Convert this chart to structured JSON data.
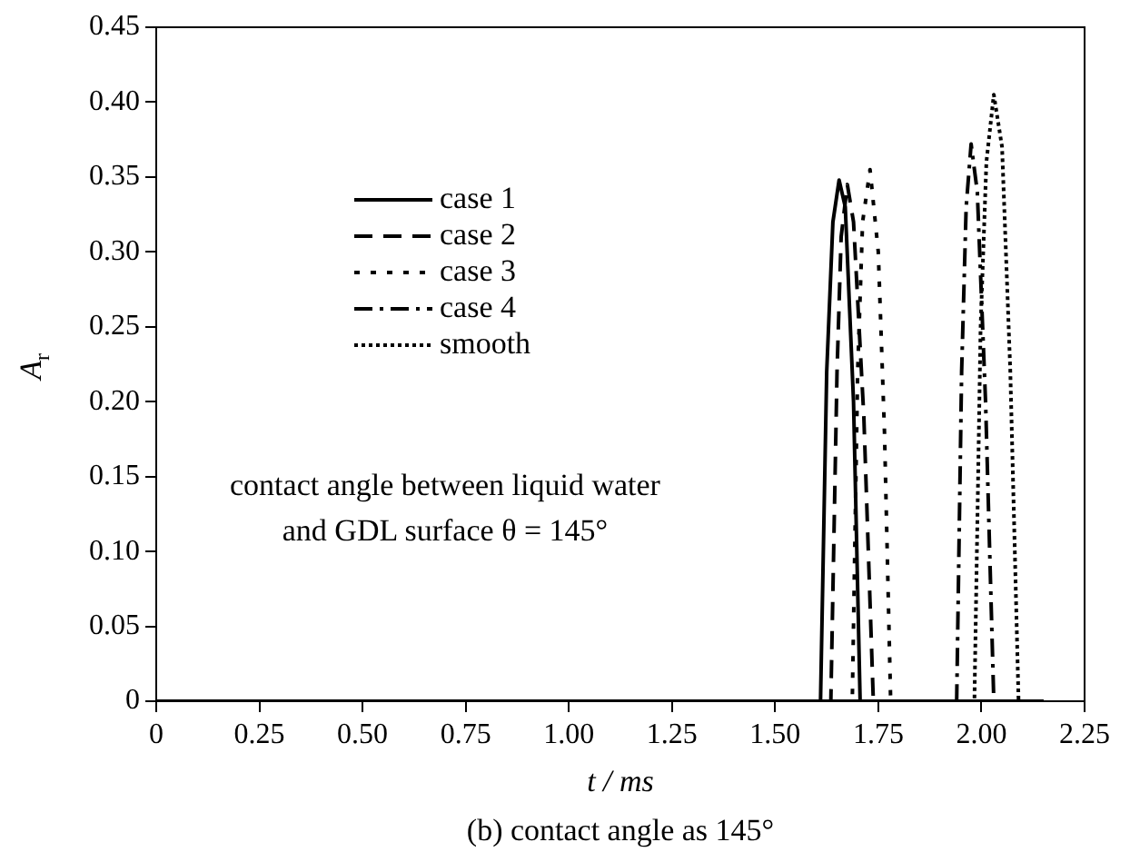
{
  "chart_data": {
    "type": "line",
    "xlabel": "t / ms",
    "ylabel": "A$_{r}$",
    "annotations": [
      "contact angle between liquid water\nand GDL surface θ = 145°",
      "(b) contact angle as 145°"
    ],
    "xlim": [
      0,
      2.25
    ],
    "xticks": [
      0,
      {
        "value": 0.25,
        "label": "0.25"
      },
      {
        "value": 0.5,
        "label": "0.50"
      },
      {
        "value": 0.75,
        "label": "0.75"
      },
      {
        "value": 1,
        "label": "1.00"
      },
      {
        "value": 1.25,
        "label": "1.25"
      },
      {
        "value": 1.5,
        "label": "1.50"
      },
      {
        "value": 1.75,
        "label": "1.75"
      },
      {
        "value": 2,
        "label": "2.00"
      },
      {
        "value": 2.25,
        "label": "2.25"
      }
    ],
    "ylim": [
      0,
      0.45
    ],
    "yticks": [
      0,
      0.05,
      {
        "value": 0.1,
        "label": "0.10"
      },
      0.15,
      {
        "value": 0.2,
        "label": "0.20"
      },
      0.25,
      {
        "value": 0.3,
        "label": "0.30"
      },
      0.35,
      {
        "value": 0.4,
        "label": "0.40"
      },
      0.45
    ],
    "grid": false,
    "legend": "left",
    "marker": "none",
    "series": [
      {
        "name": "case 1",
        "color": "#000000",
        "line_style": "solid",
        "x": [
          0,
          1.61,
          1.625,
          1.64,
          1.655,
          1.67,
          1.69,
          1.706,
          2.15
        ],
        "values": [
          0,
          0,
          0.22,
          0.32,
          0.348,
          0.33,
          0.2,
          0,
          0
        ]
      },
      {
        "name": "case 2",
        "color": "#000000",
        "line_style": "dashed",
        "x": [
          0,
          1.635,
          1.65,
          1.66,
          1.675,
          1.69,
          1.715,
          1.738,
          2.15
        ],
        "values": [
          0,
          0,
          0.22,
          0.31,
          0.345,
          0.32,
          0.19,
          0,
          0
        ]
      },
      {
        "name": "case 3",
        "color": "#000000",
        "line_style": "dotted",
        "x": [
          0,
          1.687,
          1.7,
          1.712,
          1.73,
          1.75,
          1.765,
          1.78,
          2.15
        ],
        "values": [
          0,
          0,
          0.22,
          0.32,
          0.355,
          0.3,
          0.18,
          0,
          0
        ]
      },
      {
        "name": "case 4",
        "color": "#000000",
        "line_style": "dashdot",
        "x": [
          0,
          1.94,
          1.952,
          1.963,
          1.975,
          1.99,
          2.01,
          2.03,
          2.15
        ],
        "values": [
          0,
          0,
          0.22,
          0.33,
          0.372,
          0.34,
          0.2,
          0,
          0
        ]
      },
      {
        "name": "smooth",
        "color": "#000000",
        "line_style": "densedot",
        "x": [
          0,
          1.983,
          1.998,
          2.012,
          2.03,
          2.05,
          2.07,
          2.09,
          2.15
        ],
        "values": [
          0,
          0,
          0.25,
          0.36,
          0.405,
          0.37,
          0.22,
          0,
          0
        ]
      }
    ]
  }
}
